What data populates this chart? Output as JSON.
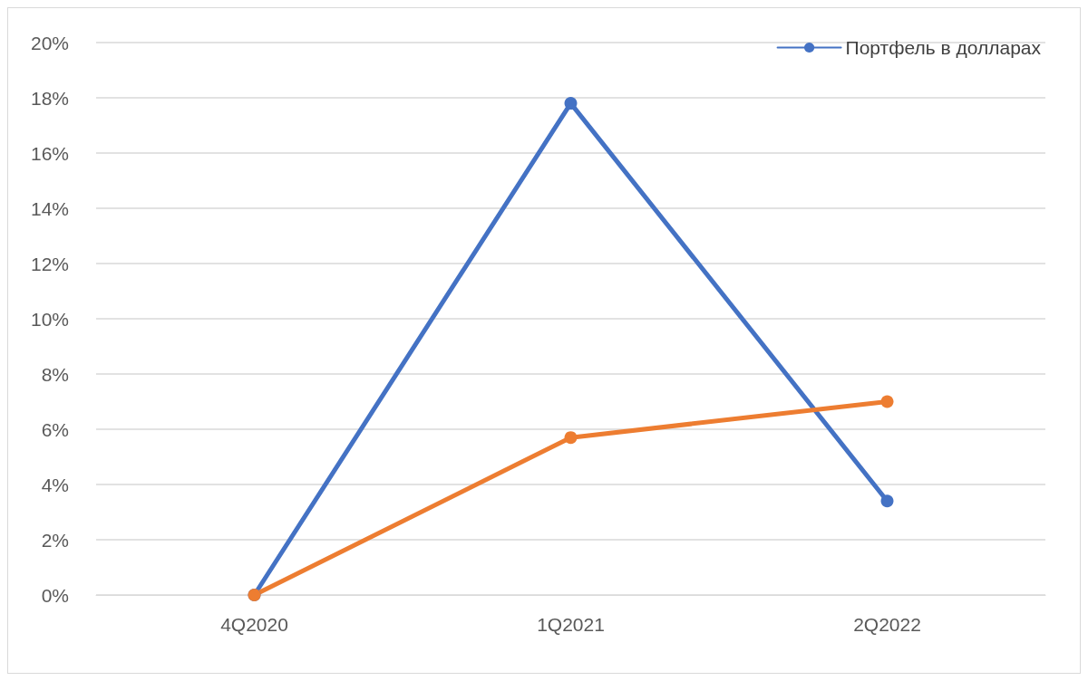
{
  "chart_data": {
    "type": "line",
    "categories": [
      "4Q2020",
      "1Q2021",
      "2Q2022"
    ],
    "series": [
      {
        "name": "Портфель в долларах",
        "color": "#4472c4",
        "values": [
          0,
          17.8,
          3.4
        ]
      },
      {
        "color": "#ed7d31",
        "values": [
          0,
          5.7,
          7.0
        ]
      }
    ],
    "ylim": [
      0,
      20
    ],
    "yticks": [
      {
        "value": 0,
        "label": "0%"
      },
      {
        "value": 2,
        "label": "2%"
      },
      {
        "value": 4,
        "label": "4%"
      },
      {
        "value": 6,
        "label": "6%"
      },
      {
        "value": 8,
        "label": "8%"
      },
      {
        "value": 10,
        "label": "10%"
      },
      {
        "value": 12,
        "label": "12%"
      },
      {
        "value": 14,
        "label": "14%"
      },
      {
        "value": 16,
        "label": "16%"
      },
      {
        "value": 18,
        "label": "18%"
      },
      {
        "value": 20,
        "label": "20%"
      }
    ],
    "grid": "y",
    "legend": "top right",
    "marker": "circle",
    "line_style": "solid"
  }
}
